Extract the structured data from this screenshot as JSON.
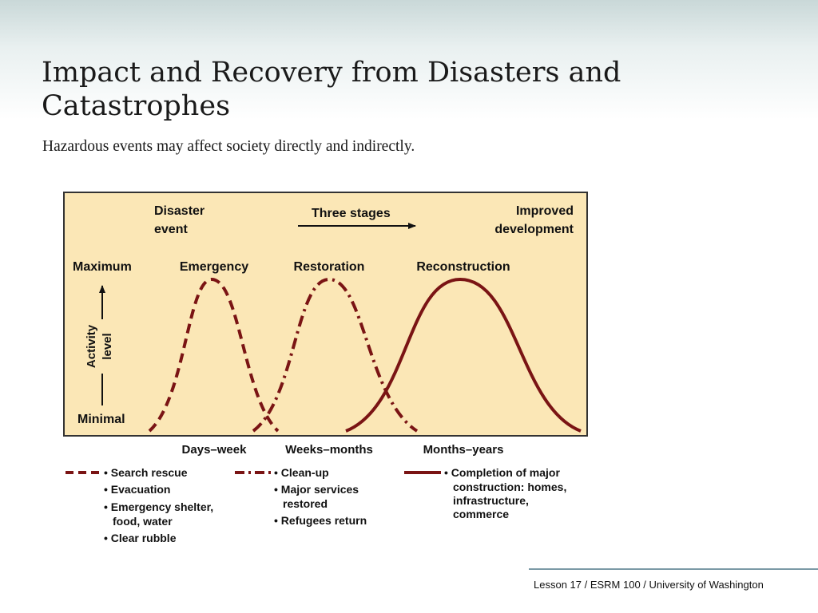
{
  "slide": {
    "title": "Impact and Recovery from Disasters and Catastrophes",
    "subtitle": "Hazardous events may affect society directly and indirectly.",
    "footer": "Lesson 17 / ESRM 100 / University of Washington"
  },
  "diagram": {
    "disaster_event_line1": "Disaster",
    "disaster_event_line2": "event",
    "three_stages": "Three stages",
    "improved_line1": "Improved",
    "improved_line2": "development",
    "maximum": "Maximum",
    "minimal": "Minimal",
    "activity_line1": "Activity",
    "activity_line2": "level",
    "stages": [
      {
        "name": "Emergency",
        "time": "Days–week"
      },
      {
        "name": "Restoration",
        "time": "Weeks–months"
      },
      {
        "name": "Reconstruction",
        "time": "Months–years"
      }
    ],
    "panel_color": "#fbe7b6",
    "curve_color": "#7a1414"
  },
  "legend": {
    "emergency": [
      "• Search rescue",
      "• Evacuation",
      "• Emergency shelter,",
      "food, water",
      "• Clear rubble"
    ],
    "restoration": [
      "• Clean-up",
      "• Major services",
      "restored",
      "• Refugees return"
    ],
    "reconstruction": [
      "• Completion of major",
      "construction: homes,",
      "infrastructure,",
      "commerce"
    ]
  }
}
